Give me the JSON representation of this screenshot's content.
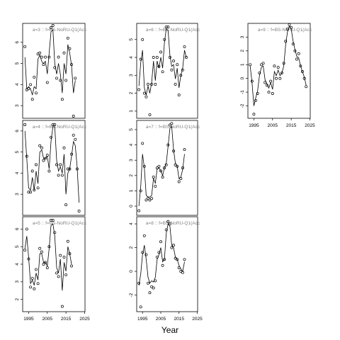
{
  "chart_data": {
    "type": "line",
    "layout": "3x3 small multiples",
    "xlabel": "Year",
    "panels": [
      {
        "label": "a=3 :: f=BS-NoRU-Q1(Acc",
        "x_ticks": [
          1995,
          2005,
          2015,
          2025
        ],
        "y_ticks": [
          3,
          4,
          5,
          6
        ],
        "x": [
          1993,
          1994,
          1995,
          1996,
          1997,
          1998,
          1999,
          2000,
          2001,
          2002,
          2003,
          2004,
          2005,
          2006,
          2007,
          2008,
          2009,
          2010,
          2011,
          2012,
          2013,
          2014,
          2015,
          2016,
          2017,
          2018,
          2019,
          2020,
          2021,
          2022,
          2023
        ],
        "points": [
          5.8,
          3.75,
          3.8,
          4.0,
          3.3,
          4.35,
          3.6,
          5.45,
          5.5,
          5.3,
          4.95,
          5.3,
          4.1,
          5.3,
          6.7,
          6.8,
          4.8,
          4.3,
          5.3,
          4.2,
          3.3,
          5.5,
          4.2,
          6.2,
          5.7,
          4.95,
          2.5,
          4.3,
          null,
          null,
          null
        ],
        "fitted": [
          5.3,
          3.8,
          3.9,
          3.8,
          3.5,
          3.9,
          3.8,
          5.2,
          5.4,
          5.1,
          5.0,
          5.1,
          4.5,
          5.5,
          6.5,
          6.6,
          5.0,
          4.5,
          5.0,
          4.5,
          3.6,
          5.0,
          4.5,
          5.9,
          5.5,
          4.9,
          3.6,
          4.2,
          null,
          null,
          null
        ]
      },
      {
        "label": "a=6 :: f=BS-NoRU-Q1(Acc",
        "x_ticks": [
          1995,
          2005,
          2015,
          2025
        ],
        "y_ticks": [
          1,
          2,
          3,
          4,
          5
        ],
        "x": [
          1993,
          1994,
          1995,
          1996,
          1997,
          1998,
          1999,
          2000,
          2001,
          2002,
          2003,
          2004,
          2005,
          2006,
          2007,
          2008,
          2009,
          2010,
          2011,
          2012,
          2013,
          2014,
          2015,
          2016,
          2017,
          2018,
          2019,
          2020,
          2021,
          2022,
          2023
        ],
        "points": [
          2.2,
          3.9,
          5.0,
          2.0,
          1.8,
          2.5,
          0.8,
          2.5,
          4.0,
          2.5,
          4.0,
          3.5,
          4.3,
          3.2,
          5.0,
          5.7,
          5.7,
          4.0,
          3.3,
          3.8,
          2.5,
          3.6,
          1.9,
          3.0,
          3.3,
          4.6,
          4.0,
          null,
          null,
          null,
          null
        ],
        "fitted": [
          2.4,
          3.7,
          4.4,
          2.3,
          1.9,
          2.4,
          2.0,
          2.6,
          3.8,
          2.7,
          3.8,
          3.4,
          4.0,
          3.4,
          4.8,
          5.6,
          5.5,
          4.1,
          3.5,
          3.6,
          2.8,
          3.4,
          2.3,
          3.0,
          3.4,
          4.4,
          4.0,
          null,
          null,
          null,
          null
        ]
      },
      {
        "label": "a=9 :: f=BS-NoRU-Q1(Acc",
        "x_ticks": [
          1995,
          2005,
          2015,
          2025
        ],
        "y_ticks": [
          -2,
          -1,
          0,
          1,
          2,
          3
        ],
        "x": [
          1993,
          1994,
          1995,
          1996,
          1997,
          1998,
          1999,
          2000,
          2001,
          2002,
          2003,
          2004,
          2005,
          2006,
          2007,
          2008,
          2009,
          2010,
          2011,
          2012,
          2013,
          2014,
          2015,
          2016,
          2017,
          2018,
          2019,
          2020,
          2021,
          2022,
          2023
        ],
        "points": [
          1.0,
          -0.2,
          -2.6,
          -1.6,
          -1.1,
          0.4,
          1.0,
          1.1,
          -0.3,
          -0.5,
          -1.0,
          -0.2,
          -1.1,
          0.9,
          0.0,
          0.8,
          0.0,
          0.4,
          1.1,
          2.7,
          3.6,
          3.9,
          3.7,
          2.5,
          2.0,
          1.4,
          1.8,
          0.9,
          0.5,
          0.0,
          -0.6
        ],
        "fitted": [
          0.9,
          -0.3,
          -2.0,
          -1.4,
          -0.9,
          0.2,
          0.8,
          0.9,
          -0.1,
          -0.4,
          -0.7,
          -0.3,
          -0.8,
          0.5,
          0.2,
          0.6,
          0.2,
          0.4,
          0.9,
          2.4,
          3.4,
          3.8,
          3.6,
          2.7,
          2.1,
          1.6,
          1.5,
          0.9,
          0.5,
          0.1,
          -0.5
        ]
      },
      {
        "label": "a=4 :: f=BS-NoRU-Q1(Acc",
        "x_ticks": [
          1995,
          2005,
          2015,
          2025
        ],
        "y_ticks": [
          3,
          4,
          5,
          6
        ],
        "x": [
          1993,
          1994,
          1995,
          1996,
          1997,
          1998,
          1999,
          2000,
          2001,
          2002,
          2003,
          2004,
          2005,
          2006,
          2007,
          2008,
          2009,
          2010,
          2011,
          2012,
          2013,
          2014,
          2015,
          2016,
          2017,
          2018,
          2019,
          2020,
          2021,
          2022,
          2023
        ],
        "points": [
          6.3,
          4.8,
          3.1,
          3.1,
          4.1,
          3.2,
          4.4,
          3.3,
          5.3,
          5.2,
          4.6,
          4.7,
          4.85,
          4.1,
          5.7,
          6.3,
          6.3,
          4.4,
          3.9,
          4.4,
          3.9,
          5.2,
          2.5,
          4.2,
          4.2,
          4.9,
          5.8,
          5.6,
          4.2,
          2.2,
          null
        ],
        "fitted": [
          6.0,
          4.7,
          3.3,
          3.2,
          3.8,
          3.2,
          4.1,
          3.5,
          5.0,
          5.1,
          4.7,
          4.7,
          4.8,
          4.2,
          5.5,
          6.2,
          6.2,
          4.6,
          4.1,
          4.3,
          4.0,
          4.9,
          3.0,
          4.0,
          4.2,
          4.8,
          5.5,
          5.3,
          4.3,
          2.6,
          null
        ]
      },
      {
        "label": "a=7 :: f=BS-NoRU-Q1(Acc",
        "x_ticks": [
          1995,
          2005,
          2015,
          2025
        ],
        "y_ticks": [
          0,
          1,
          2,
          3,
          4,
          5
        ],
        "x": [
          1993,
          1994,
          1995,
          1996,
          1997,
          1998,
          1999,
          2000,
          2001,
          2002,
          2003,
          2004,
          2005,
          2006,
          2007,
          2008,
          2009,
          2010,
          2011,
          2012,
          2013,
          2014,
          2015,
          2016,
          2017,
          2018,
          2019,
          2020,
          2021,
          2022,
          2023
        ],
        "points": [
          -0.3,
          1.0,
          4.1,
          2.6,
          0.4,
          0.5,
          0.4,
          0.5,
          1.9,
          1.3,
          2.5,
          2.6,
          2.3,
          1.9,
          2.5,
          2.7,
          4.0,
          5.3,
          5.4,
          3.6,
          2.7,
          2.6,
          1.6,
          1.8,
          2.5,
          3.7,
          null,
          null,
          null,
          null,
          null
        ],
        "fitted": [
          0.0,
          1.3,
          3.4,
          2.5,
          0.7,
          0.6,
          0.6,
          0.7,
          1.8,
          1.5,
          2.4,
          2.5,
          2.3,
          2.0,
          2.5,
          2.8,
          3.9,
          5.1,
          5.2,
          3.7,
          2.8,
          2.6,
          1.8,
          1.9,
          2.4,
          3.4,
          null,
          null,
          null,
          null,
          null
        ]
      },
      {
        "label": "a=5 :: f=BS-NoRU-Q1(Acc",
        "x_ticks": [
          1995,
          2005,
          2015,
          2025
        ],
        "y_ticks": [
          2,
          3,
          4,
          5,
          6
        ],
        "x": [
          1993,
          1994,
          1995,
          1996,
          1997,
          1998,
          1999,
          2000,
          2001,
          2002,
          2003,
          2004,
          2005,
          2006,
          2007,
          2008,
          2009,
          2010,
          2011,
          2012,
          2013,
          2014,
          2015,
          2016,
          2017,
          2018,
          2019,
          2020,
          2021,
          2022,
          2023
        ],
        "points": [
          4.8,
          6.0,
          4.3,
          2.7,
          3.2,
          2.6,
          3.7,
          2.9,
          4.9,
          4.7,
          4.0,
          4.1,
          3.8,
          5.0,
          6.5,
          6.5,
          5.8,
          3.5,
          3.3,
          4.5,
          1.6,
          4.4,
          3.4,
          5.3,
          4.6,
          3.9,
          null,
          null,
          null,
          null,
          null
        ],
        "fitted": [
          4.9,
          5.6,
          4.4,
          2.9,
          3.1,
          2.8,
          3.5,
          3.1,
          4.6,
          4.6,
          4.1,
          4.1,
          3.9,
          4.9,
          6.2,
          6.3,
          5.6,
          3.8,
          3.5,
          4.3,
          2.5,
          4.1,
          3.6,
          5.0,
          4.6,
          4.0,
          null,
          null,
          null,
          null,
          null
        ]
      },
      {
        "label": "a=8 :: f=BS-NoRU-Q1(Acc",
        "x_ticks": [
          1995,
          2005,
          2015,
          2025
        ],
        "y_ticks": [
          -2,
          0,
          2,
          4
        ],
        "x": [
          1993,
          1994,
          1995,
          1996,
          1997,
          1998,
          1999,
          2000,
          2001,
          2002,
          2003,
          2004,
          2005,
          2006,
          2007,
          2008,
          2009,
          2010,
          2011,
          2012,
          2013,
          2014,
          2015,
          2016,
          2017,
          2018,
          2019,
          2020,
          2021,
          2022,
          2023
        ],
        "points": [
          -1.0,
          -3.0,
          1.6,
          3.0,
          1.4,
          -1.0,
          -1.8,
          -1.3,
          -1.4,
          -0.8,
          1.2,
          1.6,
          2.5,
          0.5,
          1.0,
          3.5,
          4.2,
          4.0,
          2.0,
          2.2,
          1.1,
          1.0,
          0.3,
          0.0,
          -0.1,
          1.0,
          null,
          null,
          null,
          null,
          null
        ],
        "fitted": [
          -1.2,
          -0.2,
          1.4,
          2.2,
          1.0,
          -0.5,
          -1.0,
          -0.8,
          -0.9,
          -0.5,
          1.0,
          1.4,
          2.0,
          0.8,
          1.0,
          3.2,
          4.0,
          3.8,
          2.2,
          2.0,
          1.2,
          1.0,
          0.5,
          0.2,
          0.0,
          0.8,
          null,
          null,
          null,
          null,
          null
        ]
      }
    ]
  }
}
